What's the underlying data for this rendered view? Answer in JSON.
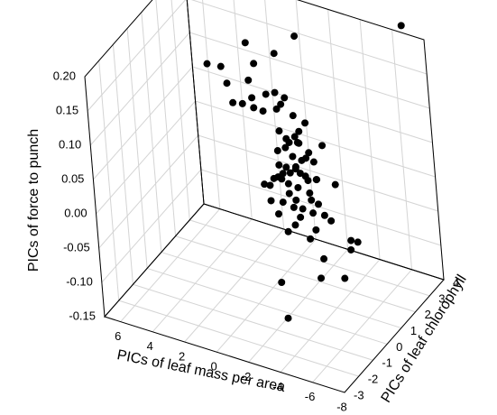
{
  "chart_data": {
    "type": "scatter",
    "dimensions": 3,
    "grid": true,
    "axes": {
      "x": {
        "label": "PICs of leaf mass per area",
        "range": [
          -8,
          7
        ],
        "ticks": [
          6,
          4,
          2,
          0,
          -2,
          -4,
          -6,
          -8
        ],
        "tick_labels": [
          "6",
          "4",
          "2",
          "0",
          "-2",
          "-4",
          "-6",
          "-8"
        ]
      },
      "y": {
        "label": "PICs of leaf chlorophyll",
        "range": [
          -3,
          4
        ],
        "ticks": [
          -3,
          -2,
          -1,
          0,
          1,
          2,
          3,
          4
        ],
        "tick_labels": [
          "-3",
          "-2",
          "-1",
          "0",
          "1",
          "2",
          "3",
          "4"
        ]
      },
      "z": {
        "label": "PICs of force to punch",
        "range": [
          -0.15,
          0.2
        ],
        "ticks": [
          -0.15,
          -0.1,
          -0.05,
          0.0,
          0.05,
          0.1,
          0.15,
          0.2
        ],
        "tick_labels": [
          "-0.15",
          "-0.10",
          "-0.05",
          "0.00",
          "0.05",
          "0.10",
          "0.15",
          "0.20"
        ]
      }
    },
    "points": [
      {
        "x": 4.58,
        "y": 2.52,
        "z": 0.107
      },
      {
        "x": 3.79,
        "y": 2.6,
        "z": 0.107
      },
      {
        "x": 3.16,
        "y": 2.27,
        "z": 0.095
      },
      {
        "x": 2.61,
        "y": 2.0,
        "z": 0.077
      },
      {
        "x": 2.0,
        "y": 2.0,
        "z": 0.08
      },
      {
        "x": 1.94,
        "y": 2.44,
        "z": 0.159
      },
      {
        "x": 1.66,
        "y": 2.16,
        "z": 0.113
      },
      {
        "x": 1.31,
        "y": 2.24,
        "z": 0.138
      },
      {
        "x": 1.38,
        "y": 2.01,
        "z": 0.093
      },
      {
        "x": -0.09,
        "y": 2.2,
        "z": 0.164
      },
      {
        "x": -1.24,
        "y": 2.44,
        "z": 0.192
      },
      {
        "x": -7.15,
        "y": 3.46,
        "z": 0.227
      },
      {
        "x": 0.39,
        "y": 1.94,
        "z": 0.107
      },
      {
        "x": -0.07,
        "y": 2.06,
        "z": 0.11
      },
      {
        "x": -0.7,
        "y": 2.02,
        "z": 0.108
      },
      {
        "x": -0.51,
        "y": 1.94,
        "z": 0.099
      },
      {
        "x": 0.71,
        "y": 1.99,
        "z": 0.079
      },
      {
        "x": -0.19,
        "y": 1.97,
        "z": 0.089
      },
      {
        "x": 1.08,
        "y": 1.78,
        "z": 0.086
      },
      {
        "x": -1.18,
        "y": 2.0,
        "z": 0.086
      },
      {
        "x": -1.89,
        "y": 2.02,
        "z": 0.08
      },
      {
        "x": -0.26,
        "y": 1.95,
        "z": 0.058
      },
      {
        "x": -1.27,
        "y": 1.91,
        "z": 0.058
      },
      {
        "x": -1.53,
        "y": 1.8,
        "z": 0.054
      },
      {
        "x": -1.02,
        "y": 1.77,
        "z": 0.051
      },
      {
        "x": -2.19,
        "y": 1.8,
        "z": 0.044
      },
      {
        "x": -2.86,
        "y": 2.03,
        "z": 0.054
      },
      {
        "x": -2.45,
        "y": 1.82,
        "z": 0.032
      },
      {
        "x": -2.77,
        "y": 1.59,
        "z": 0.014
      },
      {
        "x": -2.69,
        "y": 1.65,
        "z": 0.012
      },
      {
        "x": -3.93,
        "y": 1.6,
        "z": 0.015
      },
      {
        "x": -3.44,
        "y": 1.24,
        "z": -0.025
      },
      {
        "x": -3.77,
        "y": 1.3,
        "z": -0.032
      },
      {
        "x": -4.94,
        "y": 1.3,
        "z": -0.052
      },
      {
        "x": -5.15,
        "y": 1.04,
        "z": -0.058
      },
      {
        "x": -5.28,
        "y": 1.39,
        "z": -0.054
      },
      {
        "x": -3.53,
        "y": 0.87,
        "z": -0.079
      },
      {
        "x": -3.55,
        "y": 0.57,
        "z": -0.1
      },
      {
        "x": -4.91,
        "y": 0.73,
        "z": -0.094
      },
      {
        "x": -1.12,
        "y": 0.44,
        "z": -0.121
      },
      {
        "x": -1.79,
        "y": 0.0,
        "z": -0.158
      },
      {
        "x": -0.71,
        "y": 1.91,
        "z": 0.051
      },
      {
        "x": -1.5,
        "y": 1.97,
        "z": 0.066
      },
      {
        "x": -0.7,
        "y": 1.82,
        "z": 0.04
      },
      {
        "x": -1.56,
        "y": 1.85,
        "z": 0.052
      },
      {
        "x": -0.23,
        "y": 1.78,
        "z": 0.033
      },
      {
        "x": -0.55,
        "y": 1.57,
        "z": -0.001
      },
      {
        "x": -1.18,
        "y": 1.76,
        "z": 0.032
      },
      {
        "x": -1.76,
        "y": 1.74,
        "z": 0.031
      },
      {
        "x": -2.19,
        "y": 1.61,
        "z": 0.008
      },
      {
        "x": -1.62,
        "y": 1.5,
        "z": -0.004
      },
      {
        "x": -1.41,
        "y": 1.66,
        "z": 0.018
      },
      {
        "x": -1.09,
        "y": 1.61,
        "z": 0.011
      },
      {
        "x": -0.63,
        "y": 1.6,
        "z": 0.007
      },
      {
        "x": -1.02,
        "y": 1.51,
        "z": -0.003
      },
      {
        "x": -2.49,
        "y": 1.42,
        "z": -0.014
      },
      {
        "x": -1.96,
        "y": 1.35,
        "z": -0.029
      },
      {
        "x": -2.58,
        "y": 1.37,
        "z": -0.031
      },
      {
        "x": -1.43,
        "y": 1.32,
        "z": -0.03
      },
      {
        "x": -1.92,
        "y": 1.2,
        "z": -0.038
      },
      {
        "x": -2.87,
        "y": 1.18,
        "z": -0.049
      },
      {
        "x": -1.06,
        "y": 1.47,
        "z": -0.016
      },
      {
        "x": -1.55,
        "y": 1.38,
        "z": -0.02
      },
      {
        "x": -0.77,
        "y": 1.31,
        "z": -0.027
      },
      {
        "x": -0.08,
        "y": 1.54,
        "z": -0.003
      },
      {
        "x": 0.1,
        "y": 1.44,
        "z": -0.012
      },
      {
        "x": -0.55,
        "y": 1.19,
        "z": -0.043
      },
      {
        "x": -1.2,
        "y": 1.06,
        "z": -0.061
      },
      {
        "x": -1.68,
        "y": 1.07,
        "z": -0.048
      },
      {
        "x": -2.53,
        "y": 1.11,
        "z": -0.063
      },
      {
        "x": -2.01,
        "y": 1.65,
        "z": 0.012
      },
      {
        "x": -2.33,
        "y": 1.51,
        "z": -0.007
      },
      {
        "x": -1.63,
        "y": 1.71,
        "z": 0.012
      },
      {
        "x": -0.33,
        "y": 1.69,
        "z": 0.015
      },
      {
        "x": -1.23,
        "y": 1.86,
        "z": 0.015
      },
      {
        "x": -0.78,
        "y": 1.69,
        "z": 0.015
      },
      {
        "x": -0.38,
        "y": 1.52,
        "z": 0.002
      },
      {
        "x": 0.56,
        "y": 1.54,
        "z": -0.016
      },
      {
        "x": -3.01,
        "y": 1.33,
        "z": -0.014
      },
      {
        "x": -1.93,
        "y": 1.85,
        "z": 0.033
      },
      {
        "x": -0.09,
        "y": 1.23,
        "z": -0.028
      }
    ]
  }
}
